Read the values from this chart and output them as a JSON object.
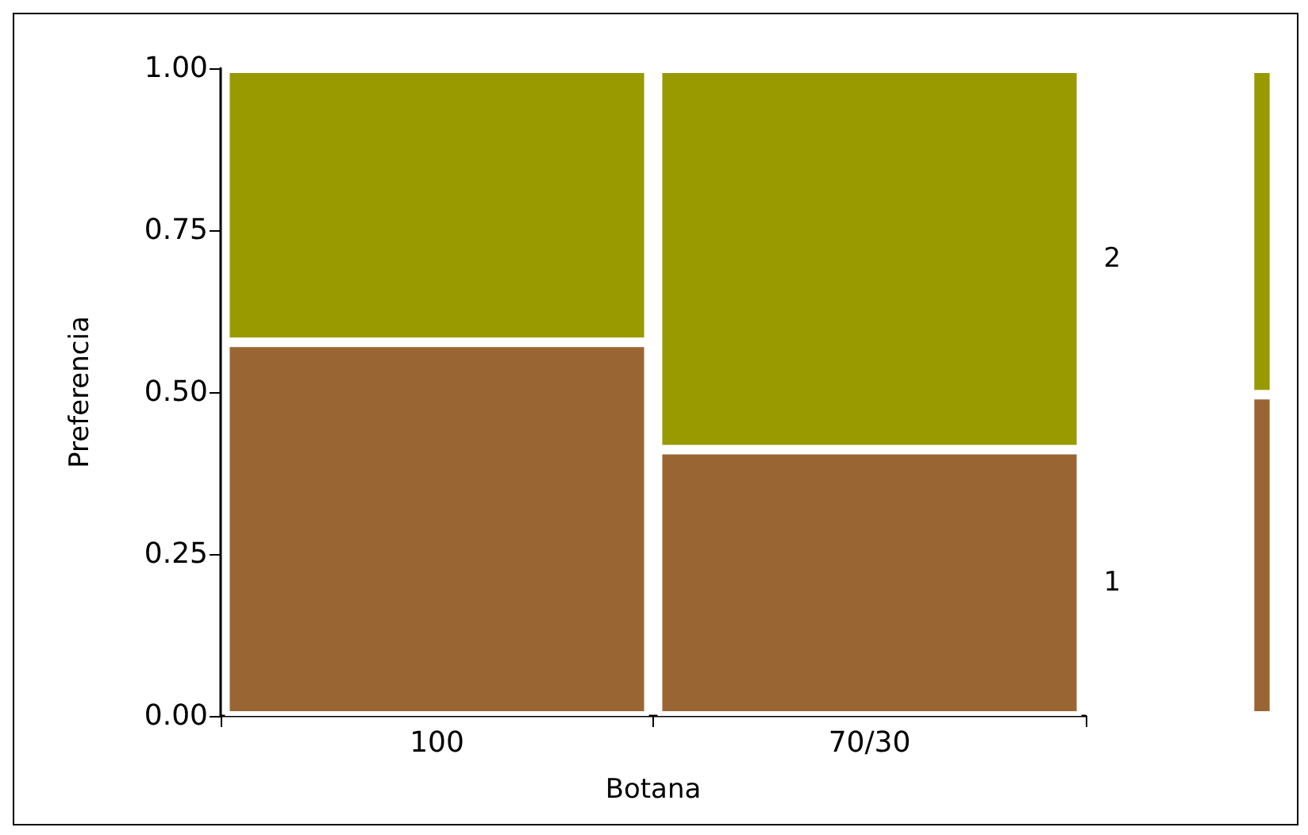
{
  "chart_data": [
    {
      "type": "bar",
      "stacked": true,
      "xlabel": "Botana",
      "ylabel": "Preferencia",
      "categories": [
        "100",
        "70/30"
      ],
      "ylim": [
        0,
        1
      ],
      "yticks": [
        {
          "value": 0,
          "label": "0.00"
        },
        {
          "value": 0.25,
          "label": "0.25"
        },
        {
          "value": 0.5,
          "label": "0.50"
        },
        {
          "value": 0.75,
          "label": "0.75"
        },
        {
          "value": 1,
          "label": "1.00"
        }
      ],
      "grid": false,
      "series": [
        {
          "name": "1",
          "color": "#996633",
          "values": [
            0.577,
            0.411
          ]
        },
        {
          "name": "2",
          "color": "#999900",
          "values": [
            0.423,
            0.589
          ]
        }
      ]
    },
    {
      "type": "bar",
      "stacked": true,
      "categories": [
        null
      ],
      "ylim": [
        0,
        1
      ],
      "tick_labels": false,
      "grid": false,
      "series": [
        {
          "color": "#996633",
          "values": [
            0.496
          ]
        },
        {
          "color": "#999900",
          "values": [
            0.504
          ]
        }
      ]
    }
  ]
}
